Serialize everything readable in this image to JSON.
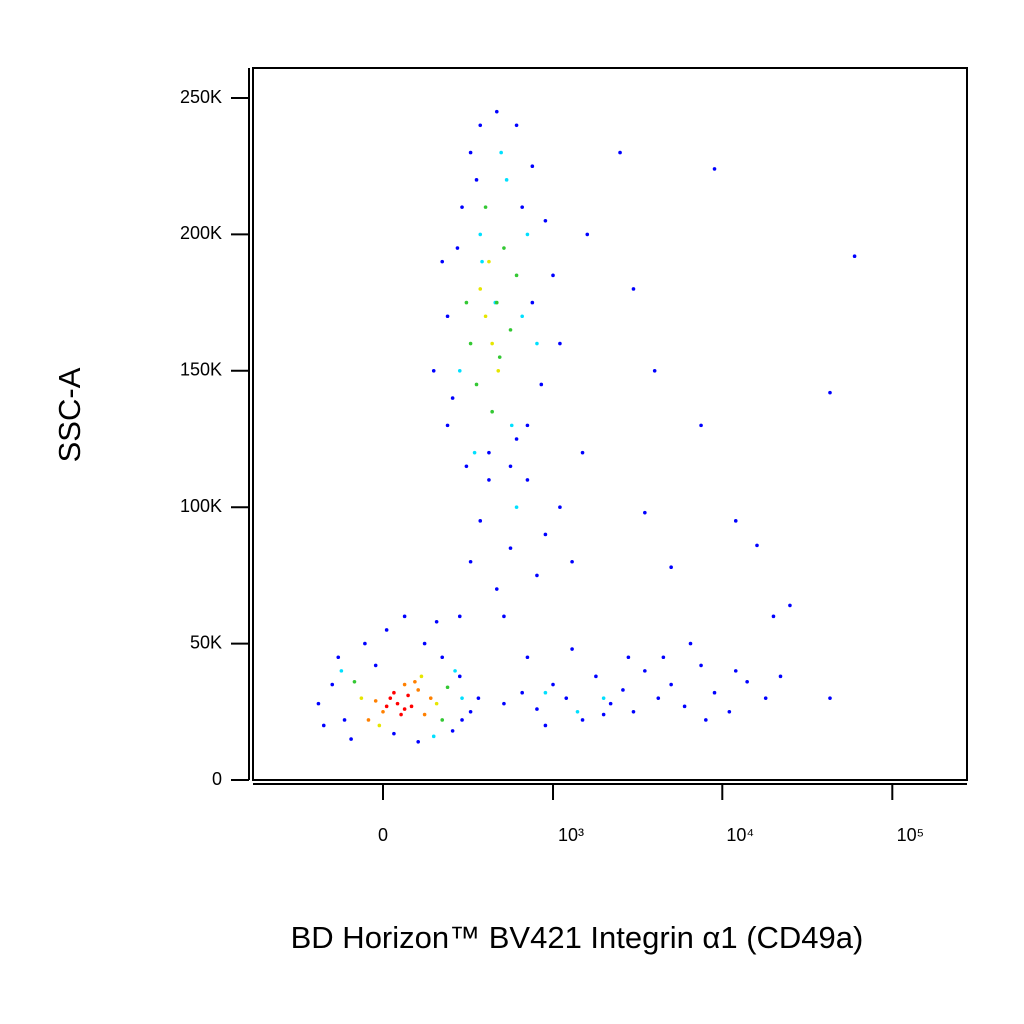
{
  "chart_data": {
    "type": "scatter",
    "xlabel": "BD Horizon™ BV421 Integrin α1 (CD49a)",
    "ylabel": "SSC-A",
    "xscale": "biexponential",
    "xlim": [
      -570,
      275000
    ],
    "ylim": [
      0,
      261000
    ],
    "xticks": [
      0,
      {
        "value": 1000,
        "label": "10³"
      },
      {
        "value": 10000,
        "label": "10⁴"
      },
      {
        "value": 100000,
        "label": "10⁵"
      }
    ],
    "yticks": [
      0,
      {
        "value": 50000,
        "label": "50K"
      },
      {
        "value": 100000,
        "label": "100K"
      },
      {
        "value": 150000,
        "label": "150K"
      },
      {
        "value": 200000,
        "label": "200K"
      },
      {
        "value": 250000,
        "label": "250K"
      }
    ],
    "series": [
      {
        "color": "#0000ff",
        "x": [
          -200,
          -180,
          -150,
          -130,
          -90,
          -50,
          -20,
          10,
          60,
          120,
          180,
          250,
          300,
          220,
          100,
          -110,
          30,
          160,
          260,
          340,
          500,
          650,
          800,
          1000,
          1200,
          1500,
          1800,
          2200,
          2600,
          3000,
          3500,
          4200,
          5000,
          6000,
          7500,
          9000,
          11000,
          14000,
          18000,
          22000,
          43000,
          700,
          1300,
          2800,
          4500,
          6500,
          900,
          2000,
          8000,
          12000,
          250,
          300,
          350,
          450,
          550,
          700,
          900,
          1100,
          600,
          800,
          1300,
          400,
          1500,
          500,
          200,
          150,
          200,
          180,
          220,
          260,
          300,
          350,
          450,
          600,
          750,
          900,
          1000,
          1100,
          850,
          700,
          550,
          400,
          280,
          240,
          330,
          650,
          750,
          1600,
          2500,
          3000,
          4000,
          9000,
          60000,
          43000,
          12000,
          16000,
          25000,
          20000,
          5000,
          3500,
          7500
        ],
        "y": [
          28000,
          20000,
          35000,
          45000,
          15000,
          50000,
          42000,
          55000,
          60000,
          50000,
          45000,
          38000,
          25000,
          18000,
          14000,
          22000,
          17000,
          58000,
          22000,
          30000,
          28000,
          32000,
          26000,
          35000,
          30000,
          22000,
          38000,
          28000,
          33000,
          25000,
          40000,
          30000,
          35000,
          27000,
          42000,
          32000,
          25000,
          36000,
          30000,
          38000,
          30000,
          45000,
          48000,
          45000,
          45000,
          50000,
          20000,
          24000,
          22000,
          40000,
          60000,
          80000,
          95000,
          70000,
          85000,
          110000,
          90000,
          100000,
          125000,
          75000,
          80000,
          110000,
          120000,
          60000,
          130000,
          150000,
          170000,
          190000,
          140000,
          210000,
          230000,
          240000,
          245000,
          240000,
          225000,
          205000,
          185000,
          160000,
          145000,
          130000,
          115000,
          120000,
          115000,
          195000,
          220000,
          210000,
          175000,
          200000,
          230000,
          180000,
          150000,
          224000,
          192000,
          142000,
          95000,
          86000,
          64000,
          60000,
          78000,
          98000,
          130000
        ]
      },
      {
        "color": "#00e0ff",
        "x": [
          -120,
          230,
          150,
          260,
          250,
          650,
          700,
          320,
          520,
          560,
          360,
          480,
          800,
          600,
          1400,
          2000,
          900,
          350,
          440
        ],
        "y": [
          40000,
          40000,
          16000,
          30000,
          150000,
          170000,
          200000,
          120000,
          220000,
          130000,
          190000,
          230000,
          160000,
          100000,
          25000,
          30000,
          32000,
          200000,
          175000
        ]
      },
      {
        "color": "#33c833",
        "x": [
          -80,
          200,
          180,
          300,
          450,
          500,
          330,
          550,
          380,
          420,
          600,
          280,
          470
        ],
        "y": [
          36000,
          34000,
          22000,
          160000,
          175000,
          195000,
          145000,
          165000,
          210000,
          135000,
          185000,
          175000,
          155000
        ]
      },
      {
        "color": "#e6e600",
        "x": [
          -60,
          160,
          110,
          -10,
          380,
          420,
          350,
          460,
          400
        ],
        "y": [
          30000,
          28000,
          38000,
          20000,
          170000,
          160000,
          180000,
          150000,
          190000
        ]
      },
      {
        "color": "#ff8000",
        "x": [
          0,
          100,
          -20,
          120,
          90,
          -40,
          60,
          140
        ],
        "y": [
          25000,
          33000,
          29000,
          24000,
          36000,
          22000,
          35000,
          30000
        ]
      },
      {
        "color": "#ff0000",
        "x": [
          40,
          60,
          20,
          80,
          50,
          30,
          70,
          10
        ],
        "y": [
          28000,
          26000,
          30000,
          27000,
          24000,
          32000,
          31000,
          27000
        ]
      }
    ]
  }
}
